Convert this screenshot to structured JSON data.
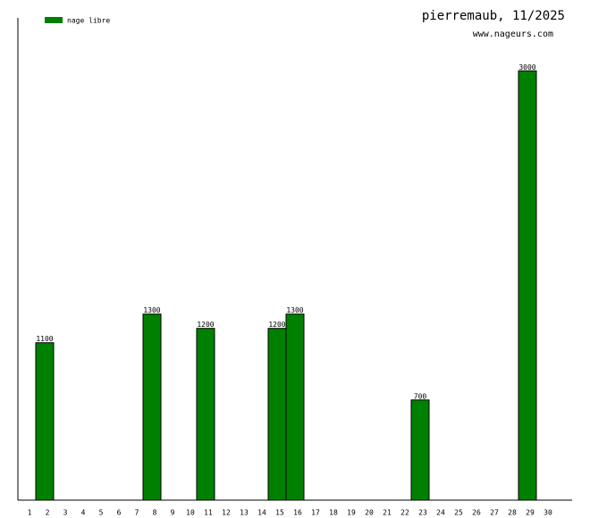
{
  "chart_data": {
    "type": "bar",
    "title": "pierremaub, 11/2025",
    "subtitle": "www.nageurs.com",
    "categories": [
      "1",
      "2",
      "3",
      "4",
      "5",
      "6",
      "7",
      "8",
      "9",
      "10",
      "11",
      "12",
      "13",
      "14",
      "15",
      "16",
      "17",
      "18",
      "19",
      "20",
      "21",
      "22",
      "23",
      "24",
      "25",
      "26",
      "27",
      "28",
      "29",
      "30"
    ],
    "series": [
      {
        "name": "nage libre",
        "color": "#008000",
        "values": [
          null,
          1100,
          null,
          null,
          null,
          null,
          null,
          1300,
          null,
          null,
          1200,
          null,
          null,
          null,
          1200,
          1300,
          null,
          null,
          null,
          null,
          null,
          null,
          700,
          null,
          null,
          null,
          null,
          null,
          3000,
          null
        ]
      }
    ],
    "ylim": [
      0,
      3370
    ],
    "legend": "top-left"
  }
}
